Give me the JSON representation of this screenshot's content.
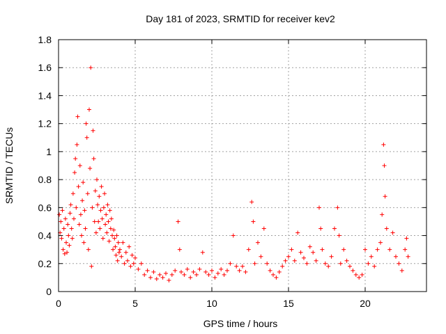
{
  "chart_data": {
    "type": "scatter",
    "title": "Day 181 of 2023, SRMTID for receiver kev2",
    "xlabel": "GPS time / hours",
    "ylabel": "SRMTID / TECUs",
    "xlim": [
      0,
      24
    ],
    "ylim": [
      0,
      1.8
    ],
    "x_ticks": [
      0,
      5,
      10,
      15,
      20
    ],
    "x_tick_labels": [
      "0",
      "5",
      "10",
      "15",
      "20"
    ],
    "y_ticks": [
      0,
      0.2,
      0.4,
      0.6,
      0.8,
      1,
      1.2,
      1.4,
      1.6,
      1.8
    ],
    "y_tick_labels": [
      "0",
      "0.2",
      "0.4",
      "0.6",
      "0.8",
      "1",
      "1.2",
      "1.4",
      "1.6",
      "1.8"
    ],
    "grid": true,
    "marker": "+",
    "marker_color": "#ff0000",
    "series": [
      {
        "name": "SRMTID",
        "points": [
          [
            0.05,
            0.55
          ],
          [
            0.1,
            0.42
          ],
          [
            0.15,
            0.5
          ],
          [
            0.2,
            0.38
          ],
          [
            0.25,
            0.58
          ],
          [
            0.3,
            0.3
          ],
          [
            0.35,
            0.45
          ],
          [
            0.4,
            0.27
          ],
          [
            0.45,
            0.52
          ],
          [
            0.5,
            0.35
          ],
          [
            0.55,
            0.28
          ],
          [
            0.6,
            0.48
          ],
          [
            0.65,
            0.4
          ],
          [
            0.7,
            0.33
          ],
          [
            0.75,
            0.56
          ],
          [
            0.8,
            0.62
          ],
          [
            0.85,
            0.45
          ],
          [
            0.9,
            0.38
          ],
          [
            0.95,
            0.7
          ],
          [
            1.0,
            0.52
          ],
          [
            1.05,
            0.85
          ],
          [
            1.1,
            0.95
          ],
          [
            1.15,
            0.6
          ],
          [
            1.2,
            1.05
          ],
          [
            1.25,
            1.25
          ],
          [
            1.3,
            0.75
          ],
          [
            1.35,
            0.48
          ],
          [
            1.4,
            0.9
          ],
          [
            1.45,
            0.55
          ],
          [
            1.5,
            0.4
          ],
          [
            1.55,
            0.65
          ],
          [
            1.6,
            0.78
          ],
          [
            1.65,
            0.35
          ],
          [
            1.7,
            0.58
          ],
          [
            1.75,
            0.45
          ],
          [
            1.8,
            1.2
          ],
          [
            1.85,
            1.1
          ],
          [
            1.9,
            0.7
          ],
          [
            1.95,
            0.3
          ],
          [
            2.0,
            1.3
          ],
          [
            2.05,
            0.88
          ],
          [
            2.1,
            1.6
          ],
          [
            2.15,
            0.18
          ],
          [
            2.2,
            0.6
          ],
          [
            2.25,
            1.15
          ],
          [
            2.3,
            0.95
          ],
          [
            2.35,
            0.5
          ],
          [
            2.4,
            0.72
          ],
          [
            2.45,
            0.42
          ],
          [
            2.5,
            0.8
          ],
          [
            2.55,
            0.62
          ],
          [
            2.6,
            0.5
          ],
          [
            2.65,
            0.68
          ],
          [
            2.7,
            0.45
          ],
          [
            2.75,
            0.58
          ],
          [
            2.8,
            0.75
          ],
          [
            2.85,
            0.52
          ],
          [
            2.9,
            0.38
          ],
          [
            2.95,
            0.6
          ],
          [
            3.0,
            0.7
          ],
          [
            3.05,
            0.48
          ],
          [
            3.1,
            0.55
          ],
          [
            3.15,
            0.42
          ],
          [
            3.2,
            0.62
          ],
          [
            3.25,
            0.5
          ],
          [
            3.3,
            0.36
          ],
          [
            3.35,
            0.58
          ],
          [
            3.4,
            0.45
          ],
          [
            3.45,
            0.52
          ],
          [
            3.5,
            0.4
          ],
          [
            3.55,
            0.3
          ],
          [
            3.6,
            0.44
          ],
          [
            3.65,
            0.38
          ],
          [
            3.7,
            0.32
          ],
          [
            3.75,
            0.26
          ],
          [
            3.8,
            0.4
          ],
          [
            3.85,
            0.22
          ],
          [
            3.9,
            0.35
          ],
          [
            3.95,
            0.28
          ],
          [
            4.0,
            0.3
          ],
          [
            4.1,
            0.25
          ],
          [
            4.2,
            0.35
          ],
          [
            4.3,
            0.2
          ],
          [
            4.4,
            0.28
          ],
          [
            4.5,
            0.22
          ],
          [
            4.6,
            0.32
          ],
          [
            4.7,
            0.18
          ],
          [
            4.8,
            0.26
          ],
          [
            4.9,
            0.2
          ],
          [
            5.0,
            0.24
          ],
          [
            5.2,
            0.16
          ],
          [
            5.4,
            0.2
          ],
          [
            5.6,
            0.12
          ],
          [
            5.8,
            0.15
          ],
          [
            6.0,
            0.1
          ],
          [
            6.2,
            0.14
          ],
          [
            6.4,
            0.09
          ],
          [
            6.6,
            0.12
          ],
          [
            6.8,
            0.1
          ],
          [
            7.0,
            0.13
          ],
          [
            7.2,
            0.08
          ],
          [
            7.4,
            0.12
          ],
          [
            7.6,
            0.15
          ],
          [
            7.8,
            0.5
          ],
          [
            7.9,
            0.3
          ],
          [
            8.0,
            0.14
          ],
          [
            8.2,
            0.12
          ],
          [
            8.4,
            0.16
          ],
          [
            8.6,
            0.1
          ],
          [
            8.8,
            0.14
          ],
          [
            9.0,
            0.12
          ],
          [
            9.2,
            0.16
          ],
          [
            9.4,
            0.28
          ],
          [
            9.6,
            0.14
          ],
          [
            9.8,
            0.12
          ],
          [
            10.0,
            0.15
          ],
          [
            10.2,
            0.1
          ],
          [
            10.4,
            0.13
          ],
          [
            10.6,
            0.16
          ],
          [
            10.8,
            0.12
          ],
          [
            11.0,
            0.15
          ],
          [
            11.2,
            0.2
          ],
          [
            11.4,
            0.4
          ],
          [
            11.6,
            0.18
          ],
          [
            11.8,
            0.15
          ],
          [
            12.0,
            0.18
          ],
          [
            12.2,
            0.14
          ],
          [
            12.4,
            0.3
          ],
          [
            12.6,
            0.64
          ],
          [
            12.7,
            0.5
          ],
          [
            12.8,
            0.2
          ],
          [
            13.0,
            0.35
          ],
          [
            13.2,
            0.25
          ],
          [
            13.4,
            0.45
          ],
          [
            13.6,
            0.2
          ],
          [
            13.8,
            0.15
          ],
          [
            14.0,
            0.12
          ],
          [
            14.2,
            0.1
          ],
          [
            14.4,
            0.14
          ],
          [
            14.6,
            0.18
          ],
          [
            14.8,
            0.22
          ],
          [
            15.0,
            0.25
          ],
          [
            15.2,
            0.3
          ],
          [
            15.4,
            0.22
          ],
          [
            15.6,
            0.42
          ],
          [
            15.8,
            0.28
          ],
          [
            16.0,
            0.24
          ],
          [
            16.2,
            0.2
          ],
          [
            16.4,
            0.32
          ],
          [
            16.6,
            0.28
          ],
          [
            16.8,
            0.22
          ],
          [
            17.0,
            0.6
          ],
          [
            17.1,
            0.45
          ],
          [
            17.2,
            0.3
          ],
          [
            17.4,
            0.2
          ],
          [
            17.6,
            0.18
          ],
          [
            17.8,
            0.25
          ],
          [
            18.0,
            0.45
          ],
          [
            18.2,
            0.6
          ],
          [
            18.3,
            0.4
          ],
          [
            18.4,
            0.2
          ],
          [
            18.6,
            0.3
          ],
          [
            18.8,
            0.22
          ],
          [
            19.0,
            0.18
          ],
          [
            19.2,
            0.15
          ],
          [
            19.4,
            0.12
          ],
          [
            19.6,
            0.1
          ],
          [
            19.8,
            0.12
          ],
          [
            20.0,
            0.3
          ],
          [
            20.2,
            0.2
          ],
          [
            20.4,
            0.25
          ],
          [
            20.6,
            0.18
          ],
          [
            20.8,
            0.3
          ],
          [
            21.0,
            0.35
          ],
          [
            21.1,
            0.55
          ],
          [
            21.2,
            1.05
          ],
          [
            21.25,
            0.9
          ],
          [
            21.3,
            0.68
          ],
          [
            21.4,
            0.45
          ],
          [
            21.6,
            0.3
          ],
          [
            21.8,
            0.42
          ],
          [
            22.0,
            0.25
          ],
          [
            22.2,
            0.2
          ],
          [
            22.4,
            0.15
          ],
          [
            22.6,
            0.3
          ],
          [
            22.7,
            0.38
          ],
          [
            22.8,
            0.25
          ]
        ]
      }
    ]
  }
}
